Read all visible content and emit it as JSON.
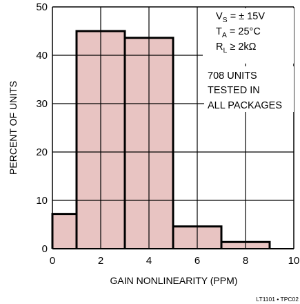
{
  "chart_data": {
    "type": "bar",
    "xlabel": "GAIN NONLINEARITY (PPM)",
    "ylabel": "PERCENT OF UNITS",
    "xlim": [
      0,
      10
    ],
    "ylim": [
      0,
      50
    ],
    "xticks": [
      0,
      2,
      4,
      6,
      8,
      10
    ],
    "yticks": [
      0,
      10,
      20,
      30,
      40,
      50
    ],
    "xtick_labels": [
      "0",
      "2",
      "4",
      "6",
      "8",
      "10"
    ],
    "ytick_labels": [
      "0",
      "10",
      "20",
      "30",
      "40",
      "50"
    ],
    "grid": true,
    "bins": [
      {
        "x0": 0,
        "x1": 1,
        "value": 7.2
      },
      {
        "x0": 1,
        "x1": 3,
        "value": 45.0
      },
      {
        "x0": 3,
        "x1": 5,
        "value": 43.6
      },
      {
        "x0": 5,
        "x1": 7,
        "value": 4.6
      },
      {
        "x0": 7,
        "x1": 9,
        "value": 1.4
      }
    ],
    "conditions": {
      "vs": {
        "main": "V",
        "sub": "S",
        "rest": " = ± 15V"
      },
      "ta": {
        "main": "T",
        "sub": "A",
        "rest": " = 25°C"
      },
      "rl": {
        "main": "R",
        "sub": "L",
        "rest": " ≥ 2kΩ"
      }
    },
    "annotation": [
      "708 UNITS",
      "TESTED IN",
      "ALL PACKAGES"
    ],
    "figure_id": "LT1101 • TPC02",
    "colors": {
      "fill": "#e8c4c2",
      "outline": "#000000",
      "grid": "#000000"
    }
  }
}
